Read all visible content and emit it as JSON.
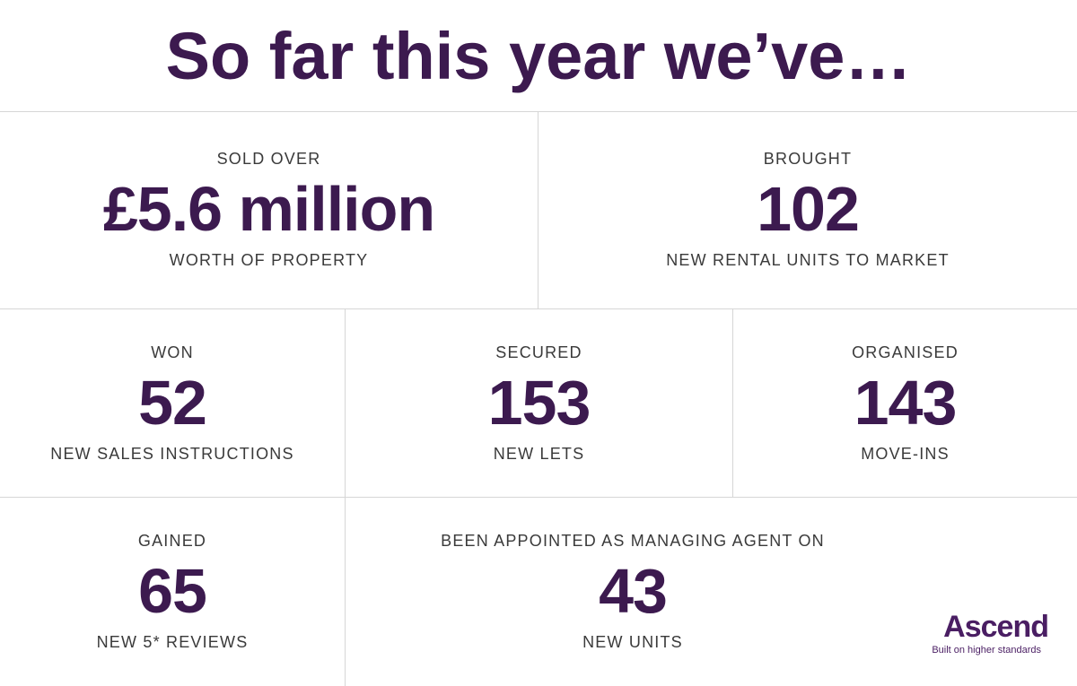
{
  "headline": "So far this year we’ve…",
  "stats": {
    "sold": {
      "top": "SOLD OVER",
      "value": "£5.6 million",
      "bottom": "WORTH OF PROPERTY"
    },
    "brought": {
      "top": "BROUGHT",
      "value": "102",
      "bottom": "NEW RENTAL UNITS TO MARKET"
    },
    "won": {
      "top": "WON",
      "value": "52",
      "bottom": "NEW SALES INSTRUCTIONS"
    },
    "secured": {
      "top": "SECURED",
      "value": "153",
      "bottom": "NEW LETS"
    },
    "organised": {
      "top": "ORGANISED",
      "value": "143",
      "bottom": "MOVE-INS"
    },
    "gained": {
      "top": "GAINED",
      "value": "65",
      "bottom": "NEW 5* REVIEWS"
    },
    "appointed": {
      "top": "BEEN APPOINTED AS MANAGING AGENT ON",
      "value": "43",
      "bottom": "NEW UNITS"
    }
  },
  "logo": {
    "name": "Ascend",
    "tagline": "Built on higher standards"
  },
  "colors": {
    "brand": "#3c1a4f",
    "divider": "#d6d6d6",
    "label": "#3a3a3a"
  }
}
